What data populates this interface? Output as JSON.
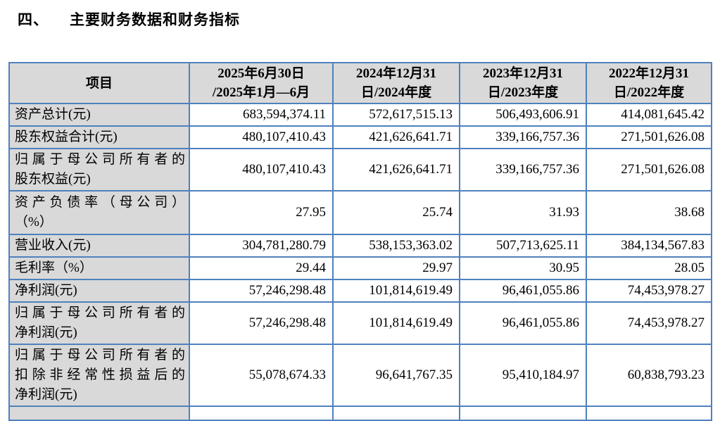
{
  "page": {
    "section_number": "四、",
    "title": "主要财务数据和财务指标"
  },
  "table": {
    "columns": [
      "项目",
      "2025年6月30日\n/2025年1月—6月",
      "2024年12月31\n日/2024年度",
      "2023年12月31\n日/2023年度",
      "2022年12月31\n日/2022年度"
    ],
    "rows": [
      {
        "label": "资产总计(元)",
        "values": [
          "683,594,374.11",
          "572,617,515.13",
          "506,493,606.91",
          "414,081,645.42"
        ]
      },
      {
        "label": "股东权益合计(元)",
        "values": [
          "480,107,410.43",
          "421,626,641.71",
          "339,166,757.36",
          "271,501,626.08"
        ]
      },
      {
        "label": "归属于母公司所有者的\n股东权益(元)",
        "values": [
          "480,107,410.43",
          "421,626,641.71",
          "339,166,757.36",
          "271,501,626.08"
        ]
      },
      {
        "label": "资产负债率（母公司）\n（%）",
        "values": [
          "27.95",
          "25.74",
          "31.93",
          "38.68"
        ]
      },
      {
        "label": "营业收入(元)",
        "values": [
          "304,781,280.79",
          "538,153,363.02",
          "507,713,625.11",
          "384,134,567.83"
        ]
      },
      {
        "label": "毛利率（%）",
        "values": [
          "29.44",
          "29.97",
          "30.95",
          "28.05"
        ]
      },
      {
        "label": "净利润(元)",
        "values": [
          "57,246,298.48",
          "101,814,619.49",
          "96,461,055.86",
          "74,453,978.27"
        ]
      },
      {
        "label": "归属于母公司所有者的\n净利润(元)",
        "values": [
          "57,246,298.48",
          "101,814,619.49",
          "96,461,055.86",
          "74,453,978.27"
        ]
      },
      {
        "label": "归属于母公司所有者的\n扣除非经常性损益后的\n净利润(元)",
        "values": [
          "55,078,674.33",
          "96,641,767.35",
          "95,410,184.97",
          "60,838,793.23"
        ]
      },
      {
        "label": "",
        "values": [
          "",
          "",
          "",
          ""
        ]
      }
    ],
    "colors": {
      "border": "#4f81bd",
      "header_bg": "#d9d9d9",
      "label_bg": "#d9d9d9"
    }
  }
}
